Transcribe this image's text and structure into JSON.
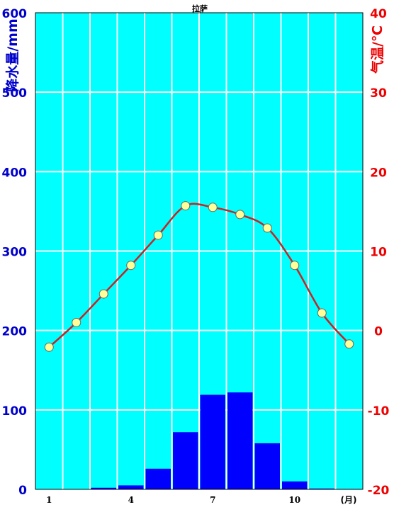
{
  "chart_data": {
    "type": "bar+line",
    "title": "拉萨",
    "ylabel_left": "降水量/mm",
    "ylabel_right": "气温/℃",
    "x_unit": "(月)",
    "months": [
      1,
      2,
      3,
      4,
      5,
      6,
      7,
      8,
      9,
      10,
      11,
      12
    ],
    "x_tick_labels": [
      {
        "month": 1,
        "label": "1"
      },
      {
        "month": 4,
        "label": "4"
      },
      {
        "month": 7,
        "label": "7"
      },
      {
        "month": 10,
        "label": "10"
      }
    ],
    "precip_ylim": [
      0,
      600
    ],
    "precip_ticks": [
      "0",
      "100",
      "200",
      "300",
      "400",
      "500",
      "600"
    ],
    "temp_ylim": [
      -20,
      40
    ],
    "temp_ticks": [
      "-20",
      "-10",
      "0",
      "10",
      "20",
      "30",
      "40"
    ],
    "series": [
      {
        "kind": "bar",
        "axis": "left",
        "values": [
          0.2,
          0.2,
          2,
          5,
          26,
          72,
          119,
          122,
          58,
          10,
          1,
          0.5
        ]
      },
      {
        "kind": "line",
        "axis": "right",
        "values": [
          -2.1,
          1.0,
          4.6,
          8.2,
          12.0,
          15.7,
          15.5,
          14.6,
          12.9,
          8.2,
          2.2,
          -1.7
        ]
      }
    ],
    "colors": {
      "plot_bg": "#00FFFF",
      "grid": "#ffffff",
      "bar": "#0000FF",
      "line": "#CC2222",
      "marker_fill": "#FFFF99",
      "marker_stroke": "#666666",
      "left_axis_text": "#0000CC",
      "right_axis_text": "#EE0000"
    }
  }
}
